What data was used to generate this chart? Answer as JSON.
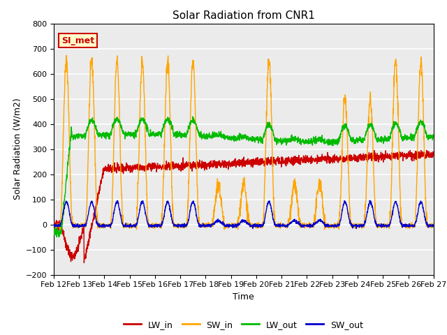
{
  "title": "Solar Radiation from CNR1",
  "xlabel": "Time",
  "ylabel": "Solar Radiation (W/m2)",
  "ylim": [
    -200,
    800
  ],
  "bg_color": "#ebebeb",
  "grid_color": "white",
  "annotation_text": "SI_met",
  "annotation_bg": "#ffffcc",
  "annotation_border": "#cc0000",
  "line_colors": {
    "LW_in": "#cc0000",
    "SW_in": "#ffa500",
    "LW_out": "#00bb00",
    "SW_out": "#0000cc"
  },
  "xtick_labels": [
    "Feb 12",
    "Feb 13",
    "Feb 14",
    "Feb 15",
    "Feb 16",
    "Feb 17",
    "Feb 18",
    "Feb 19",
    "Feb 20",
    "Feb 21",
    "Feb 22",
    "Feb 23",
    "Feb 24",
    "Feb 25",
    "Feb 26",
    "Feb 27"
  ],
  "n_days": 15
}
